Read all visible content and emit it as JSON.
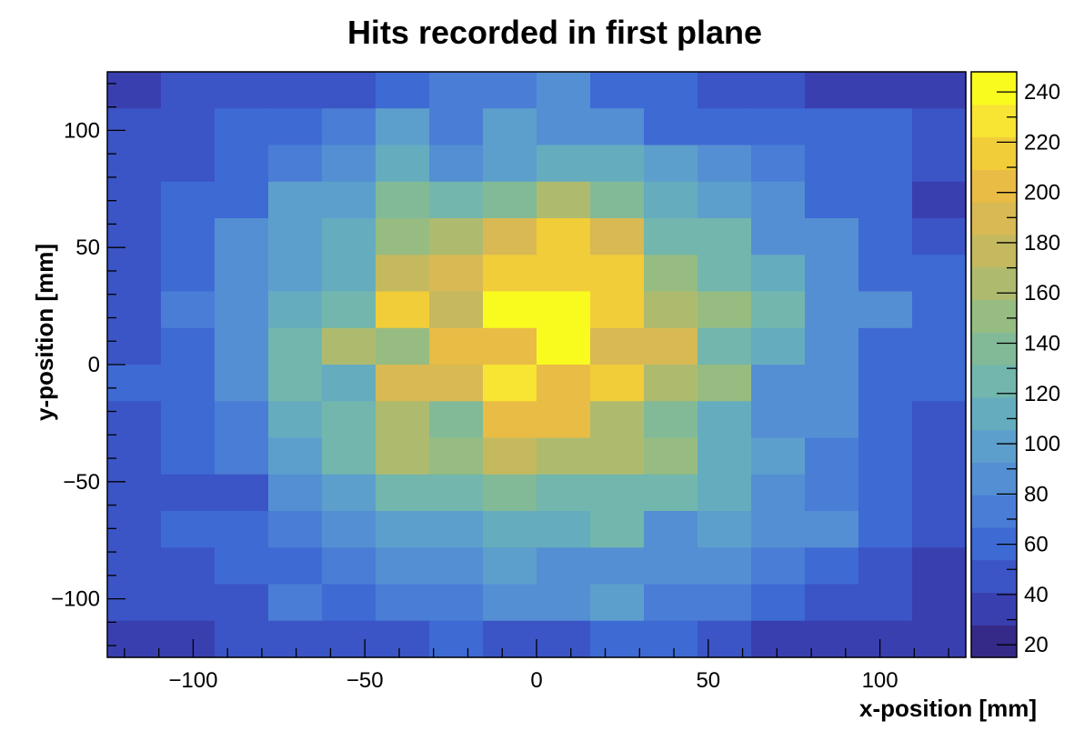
{
  "chart_data": {
    "type": "heatmap",
    "title": "Hits recorded in first plane",
    "xlabel": "x-position [mm]",
    "ylabel": "y-position [mm]",
    "xlim": [
      -125,
      125
    ],
    "ylim": [
      -125,
      125
    ],
    "bins_x": 16,
    "bins_y": 16,
    "x_ticks": [
      -100,
      -50,
      0,
      50,
      100
    ],
    "x_tick_labels": [
      "−100",
      "−50",
      "0",
      "50",
      "100"
    ],
    "y_ticks": [
      -100,
      -50,
      0,
      50,
      100
    ],
    "y_tick_labels": [
      "−100",
      "−50",
      "0",
      "50",
      "100"
    ],
    "z_range": [
      15,
      248
    ],
    "z_ticks": [
      20,
      40,
      60,
      80,
      100,
      120,
      140,
      160,
      180,
      200,
      220,
      240
    ],
    "z_tick_labels": [
      "20",
      "40",
      "60",
      "80",
      "100",
      "120",
      "140",
      "160",
      "180",
      "200",
      "220",
      "240"
    ],
    "colormap": [
      "#352a87",
      "#3a3fb0",
      "#3b55c6",
      "#3e6ad4",
      "#4a7dd6",
      "#558fd3",
      "#5d9fcc",
      "#66acbf",
      "#72b6ad",
      "#82ba97",
      "#96bc82",
      "#aebb6f",
      "#c4b95f",
      "#d8b953",
      "#e9bc45",
      "#f2cd3a",
      "#f8e433",
      "#f9fb1e"
    ],
    "values_rows_top_to_bottom": [
      [
        30,
        50,
        45,
        45,
        50,
        55,
        70,
        75,
        85,
        65,
        55,
        50,
        50,
        30,
        30,
        30
      ],
      [
        45,
        50,
        55,
        60,
        75,
        95,
        75,
        105,
        90,
        85,
        65,
        60,
        65,
        65,
        60,
        45
      ],
      [
        50,
        50,
        60,
        75,
        85,
        115,
        90,
        100,
        110,
        110,
        95,
        85,
        75,
        65,
        55,
        50
      ],
      [
        45,
        60,
        55,
        95,
        100,
        140,
        125,
        135,
        170,
        140,
        110,
        100,
        80,
        65,
        65,
        30
      ],
      [
        50,
        55,
        80,
        100,
        110,
        145,
        160,
        185,
        215,
        185,
        130,
        120,
        90,
        80,
        55,
        50
      ],
      [
        50,
        60,
        80,
        100,
        110,
        175,
        185,
        215,
        215,
        215,
        150,
        125,
        110,
        90,
        60,
        55
      ],
      [
        50,
        70,
        90,
        110,
        125,
        215,
        180,
        248,
        248,
        210,
        170,
        155,
        125,
        90,
        80,
        55
      ],
      [
        45,
        60,
        85,
        120,
        160,
        145,
        200,
        200,
        248,
        195,
        190,
        130,
        110,
        85,
        60,
        55
      ],
      [
        55,
        60,
        85,
        130,
        110,
        190,
        190,
        225,
        200,
        215,
        165,
        145,
        80,
        80,
        65,
        55
      ],
      [
        50,
        60,
        70,
        115,
        120,
        170,
        140,
        200,
        200,
        160,
        140,
        110,
        90,
        80,
        55,
        50
      ],
      [
        50,
        60,
        70,
        95,
        125,
        160,
        150,
        175,
        160,
        160,
        145,
        115,
        100,
        75,
        60,
        50
      ],
      [
        45,
        50,
        50,
        90,
        100,
        125,
        125,
        140,
        125,
        125,
        120,
        110,
        90,
        75,
        60,
        50
      ],
      [
        45,
        55,
        65,
        75,
        80,
        100,
        100,
        110,
        110,
        130,
        90,
        95,
        90,
        80,
        55,
        45
      ],
      [
        45,
        50,
        55,
        60,
        70,
        90,
        80,
        100,
        85,
        90,
        80,
        80,
        70,
        55,
        50,
        35
      ],
      [
        45,
        50,
        50,
        75,
        65,
        75,
        75,
        90,
        85,
        105,
        75,
        70,
        55,
        50,
        45,
        35
      ],
      [
        30,
        30,
        50,
        45,
        50,
        50,
        55,
        50,
        50,
        55,
        60,
        45,
        35,
        30,
        35,
        30
      ]
    ]
  }
}
